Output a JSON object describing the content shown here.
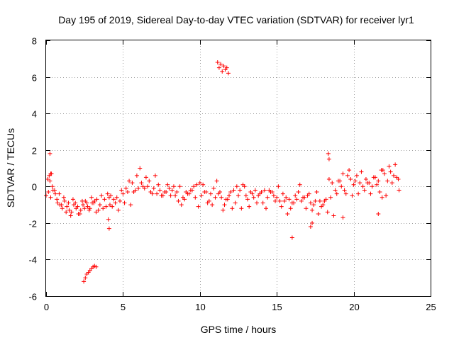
{
  "chart_data": {
    "type": "scatter",
    "title": "Day 195 of 2019, Sidereal Day-to-day VTEC variation (SDTVAR) for receiver lyr1",
    "xlabel": "GPS time / hours",
    "ylabel": "SDTVAR / TECUs",
    "xlim": [
      0,
      25
    ],
    "ylim": [
      -6,
      8
    ],
    "xticks": [
      0,
      5,
      10,
      15,
      20,
      25
    ],
    "yticks": [
      -6,
      -4,
      -2,
      0,
      2,
      4,
      6,
      8
    ],
    "xtick_labels": [
      "0",
      "5",
      "10",
      "15",
      "20",
      "25"
    ],
    "ytick_labels": [
      "-6",
      "-4",
      "-2",
      "0",
      "2",
      "4",
      "6",
      "8"
    ],
    "grid": true,
    "marker": "+",
    "series": [
      {
        "name": "SDTVAR",
        "color": "#ff0000",
        "x": [
          0.0,
          0.15,
          0.3,
          0.45,
          0.6,
          0.75,
          0.9,
          1.05,
          1.2,
          1.35,
          1.5,
          1.65,
          1.8,
          1.95,
          2.1,
          2.25,
          2.4,
          2.55,
          2.7,
          2.85,
          3.0,
          3.15,
          3.3,
          3.5,
          3.7,
          3.9,
          4.0,
          4.2,
          4.4,
          4.6,
          4.8,
          5.0,
          5.2,
          5.4,
          5.6,
          5.8,
          6.0,
          6.2,
          6.4,
          6.6,
          6.8,
          7.0,
          7.2,
          7.4,
          7.6,
          7.8,
          8.0,
          8.2,
          8.4,
          8.6,
          8.8,
          9.0,
          9.2,
          9.4,
          9.6,
          9.8,
          10.0,
          10.2,
          10.4,
          10.6,
          10.8,
          11.0,
          11.2,
          11.4,
          11.6,
          11.8,
          12.0,
          12.2,
          12.4,
          12.6,
          12.8,
          13.0,
          13.2,
          13.4,
          13.6,
          13.8,
          14.0,
          14.2,
          14.4,
          14.6,
          14.8,
          15.0,
          15.2,
          15.4,
          15.6,
          15.8,
          16.0,
          16.2,
          16.4,
          16.6,
          16.8,
          17.0,
          17.2,
          17.4,
          17.6,
          17.8,
          18.0,
          18.2,
          18.4,
          18.6,
          18.8,
          19.0,
          19.2,
          19.4,
          19.6,
          19.8,
          20.0,
          20.2,
          20.4,
          20.6,
          20.8,
          21.0,
          21.2,
          21.4,
          21.6,
          21.8,
          22.0,
          22.2,
          22.4,
          22.6,
          22.8,
          22.95,
          0.1,
          0.25,
          0.4,
          0.55,
          0.2,
          0.35,
          0.7,
          0.85,
          1.0,
          1.15,
          1.3,
          1.45,
          1.6,
          1.75,
          1.9,
          2.05,
          2.2,
          2.35,
          2.5,
          2.65,
          2.8,
          2.95,
          3.1,
          3.25,
          3.4,
          3.6,
          3.8,
          4.1,
          4.3,
          4.5,
          4.7,
          4.9,
          5.1,
          5.3,
          5.5,
          5.7,
          5.9,
          6.1,
          6.3,
          6.5,
          6.7,
          6.9,
          7.1,
          7.3,
          7.5,
          7.7,
          7.9,
          8.1,
          8.3,
          8.5,
          8.7,
          8.9,
          9.1,
          9.3,
          9.5,
          9.7,
          9.9,
          10.1,
          10.3,
          10.5,
          10.7,
          10.9,
          11.1,
          11.3,
          11.5,
          11.7,
          11.9,
          12.1,
          12.3,
          12.5,
          12.7,
          12.9,
          13.1,
          13.3,
          13.5,
          13.7,
          13.9,
          14.1,
          14.3,
          14.5,
          14.7,
          14.9,
          15.1,
          15.3,
          15.5,
          15.7,
          15.9,
          16.1,
          16.3,
          16.5,
          16.7,
          16.9,
          17.1,
          17.3,
          17.5,
          17.7,
          17.9,
          18.1,
          18.3,
          18.5,
          18.7,
          18.9,
          19.1,
          19.3,
          19.5,
          19.7,
          19.9,
          20.1,
          20.3,
          20.5,
          20.7,
          20.9,
          21.1,
          21.3,
          21.5,
          21.7,
          21.9,
          22.1,
          22.3,
          22.5,
          22.7,
          22.9,
          2.45,
          2.55,
          2.65,
          2.75,
          2.85,
          2.95,
          3.05,
          3.15,
          3.25,
          11.15,
          11.25,
          11.35,
          11.45,
          11.55,
          11.65,
          11.75,
          11.85,
          4.05,
          4.1,
          0.25,
          0.3,
          18.35,
          18.4,
          16.0,
          17.2,
          17.3,
          19.3,
          21.6,
          21.85,
          4.15
        ],
        "y": [
          -0.5,
          -0.3,
          -0.6,
          -0.2,
          -0.4,
          -0.9,
          -1.0,
          -1.2,
          -0.8,
          -1.1,
          -1.3,
          -1.4,
          -1.0,
          -1.2,
          -1.5,
          -1.3,
          -1.0,
          -0.8,
          -1.1,
          -1.2,
          -0.9,
          -0.8,
          -0.7,
          -1.0,
          -1.2,
          -1.1,
          -0.4,
          -0.5,
          -0.7,
          -0.6,
          -0.8,
          -0.4,
          -0.1,
          0.3,
          0.2,
          -0.2,
          -0.1,
          0.2,
          -0.1,
          0.0,
          -0.3,
          -0.1,
          -0.4,
          -0.2,
          -0.5,
          -0.3,
          -0.1,
          -0.2,
          -0.5,
          -0.8,
          -1.0,
          -0.7,
          -0.4,
          -0.2,
          0.0,
          0.1,
          0.2,
          0.1,
          -0.3,
          -0.8,
          -1.0,
          -0.6,
          -0.4,
          -0.6,
          -1.0,
          -0.7,
          -0.3,
          -0.2,
          0.0,
          -0.2,
          0.1,
          -0.5,
          -1.1,
          -0.4,
          -0.2,
          -0.5,
          -0.3,
          -0.2,
          -0.6,
          -0.3,
          -0.5,
          -0.6,
          -0.8,
          -0.4,
          -0.6,
          -0.7,
          -0.9,
          -0.5,
          -0.3,
          -0.8,
          -0.6,
          -0.5,
          -0.9,
          -1.0,
          -0.3,
          -0.8,
          -1.0,
          -0.7,
          0.4,
          0.2,
          -0.2,
          0.3,
          0.0,
          -0.2,
          0.6,
          0.4,
          0.1,
          0.6,
          0.2,
          0.0,
          0.4,
          0.2,
          0.0,
          0.5,
          0.3,
          0.9,
          0.7,
          0.3,
          0.8,
          0.6,
          0.5,
          -0.2,
          0.4,
          0.3,
          0.0,
          -0.2,
          0.6,
          0.7,
          -0.7,
          -0.4,
          -1.0,
          -0.6,
          -1.4,
          -0.9,
          -1.6,
          -0.7,
          -0.9,
          -1.1,
          -1.5,
          -0.8,
          -1.2,
          -0.9,
          -1.3,
          -0.6,
          -0.9,
          -1.4,
          -1.3,
          -0.5,
          -0.7,
          -0.6,
          -1.1,
          -0.9,
          -1.3,
          -0.2,
          -0.9,
          -0.3,
          -1.0,
          -0.3,
          0.6,
          1.0,
          0.0,
          0.5,
          0.3,
          -0.4,
          0.6,
          0.1,
          -0.5,
          -0.3,
          0.1,
          -0.5,
          0.0,
          -0.3,
          0.0,
          -0.6,
          -0.3,
          -0.4,
          -0.2,
          -0.6,
          -1.1,
          -0.5,
          -0.3,
          -0.9,
          -0.4,
          -0.1,
          0.3,
          -0.3,
          -1.3,
          -0.7,
          -0.5,
          -1.2,
          -0.9,
          -0.5,
          -1.2,
          0.0,
          -0.7,
          -0.3,
          -0.6,
          -0.9,
          -0.4,
          -0.9,
          -1.2,
          -0.2,
          -0.3,
          -0.8,
          0.0,
          -1.1,
          -0.8,
          -1.5,
          -1.2,
          -0.9,
          -0.7,
          0.1,
          -0.6,
          -1.2,
          -0.4,
          -1.3,
          -0.8,
          -1.5,
          -1.1,
          -0.8,
          -1.4,
          -0.6,
          -1.6,
          -0.4,
          0.3,
          0.7,
          -0.4,
          0.9,
          -0.5,
          0.3,
          -0.4,
          0.8,
          -0.2,
          0.2,
          -0.4,
          0.5,
          0.1,
          -0.3,
          0.9,
          -0.5,
          1.1,
          0.2,
          1.2,
          0.4,
          -5.2,
          -5.0,
          -4.8,
          -4.7,
          -4.6,
          -4.5,
          -4.4,
          -4.35,
          -4.4,
          6.8,
          6.5,
          6.7,
          6.3,
          6.6,
          6.4,
          6.5,
          6.2,
          -1.8,
          -2.3,
          1.8,
          0.7,
          1.8,
          1.5,
          -2.8,
          -2.2,
          -2.0,
          -1.7,
          -1.5,
          -0.6,
          -1.0
        ]
      }
    ]
  }
}
